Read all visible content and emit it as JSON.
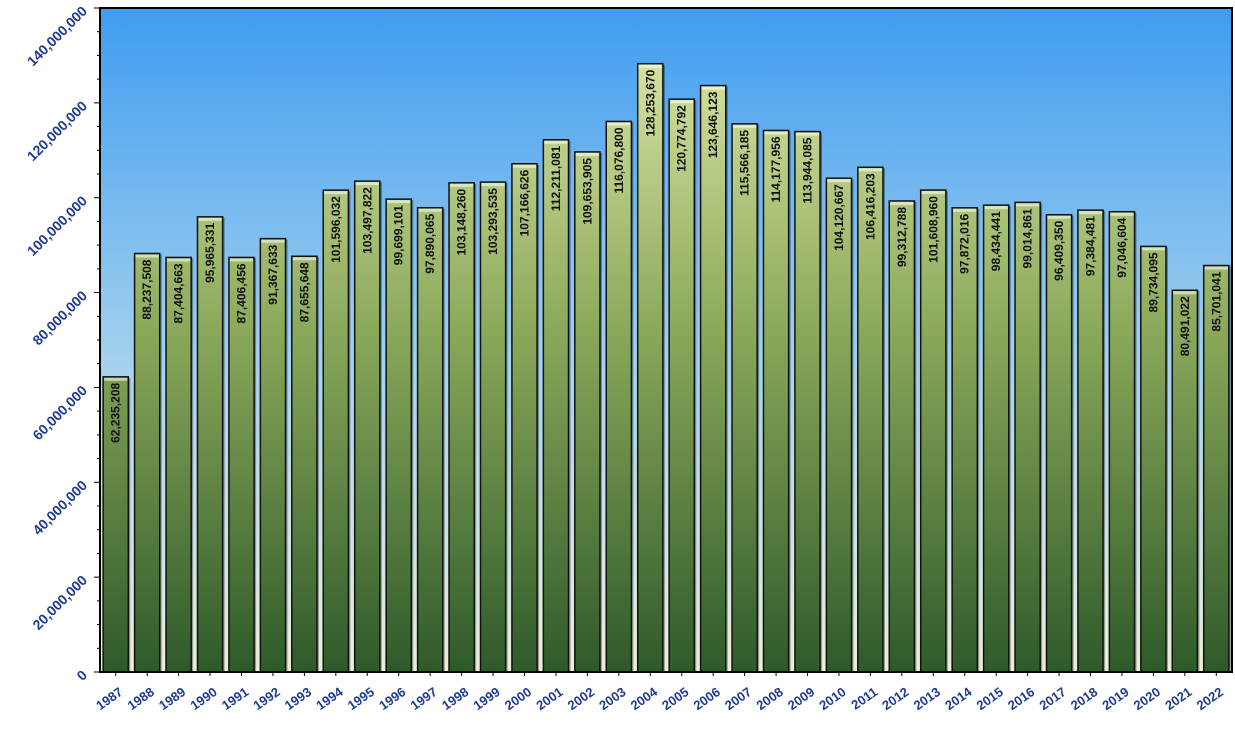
{
  "chart_data": {
    "type": "bar",
    "title": "",
    "xlabel": "",
    "ylabel": "",
    "ylim": [
      0,
      140000000
    ],
    "yticks": [
      0,
      20000000,
      40000000,
      60000000,
      80000000,
      100000000,
      120000000,
      140000000
    ],
    "ytick_labels": [
      "0",
      "20,000,000",
      "40,000,000",
      "60,000,000",
      "80,000,000",
      "100,000,000",
      "120,000,000",
      "140,000,000"
    ],
    "grid": false,
    "legend": "none",
    "colors": {
      "background_top": "#3f9cf0",
      "background_bottom": "#eaf0d8",
      "bar_top": "#d6e3a2",
      "bar_mid": "#8aa85a",
      "bar_bottom": "#2e5a2a",
      "tick_text": "#1f3a93",
      "label_text": "#111111"
    },
    "categories": [
      "1987",
      "1988",
      "1989",
      "1990",
      "1991",
      "1992",
      "1993",
      "1994",
      "1995",
      "1996",
      "1997",
      "1998",
      "1999",
      "2000",
      "2001",
      "2002",
      "2003",
      "2004",
      "2005",
      "2006",
      "2007",
      "2008",
      "2009",
      "2010",
      "2011",
      "2012",
      "2013",
      "2014",
      "2015",
      "2016",
      "2017",
      "2018",
      "2019",
      "2020",
      "2021",
      "2022"
    ],
    "values": [
      62235208,
      88237508,
      87404663,
      95965331,
      87406456,
      91367633,
      87655648,
      101596032,
      103497822,
      99699101,
      97890065,
      103148260,
      103293535,
      107166626,
      112211081,
      109653905,
      116076800,
      128253670,
      120774792,
      123646123,
      115566185,
      114177956,
      113944085,
      104120667,
      106416203,
      99312788,
      101608960,
      97872016,
      98434441,
      99014861,
      96409350,
      97384481,
      97046604,
      89734095,
      80491022,
      85701041
    ],
    "value_labels": [
      "62,235,208",
      "88,237,508",
      "87,404,663",
      "95,965,331",
      "87,406,456",
      "91,367,633",
      "87,655,648",
      "101,596,032",
      "103,497,822",
      "99,699,101",
      "97,890,065",
      "103,148,260",
      "103,293,535",
      "107,166,626",
      "112,211,081",
      "109,653,905",
      "116,076,800",
      "128,253,670",
      "120,774,792",
      "123,646,123",
      "115,566,185",
      "114,177,956",
      "113,944,085",
      "104,120,667",
      "106,416,203",
      "99,312,788",
      "101,608,960",
      "97,872,016",
      "98,434,441",
      "99,014,861",
      "96,409,350",
      "97,384,481",
      "97,046,604",
      "89,734,095",
      "80,491,022",
      "85,701,041"
    ]
  }
}
